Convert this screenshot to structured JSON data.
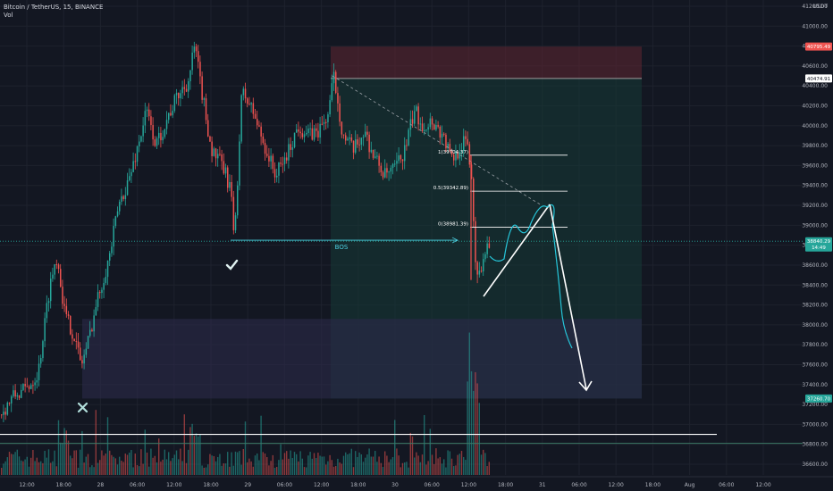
{
  "header": {
    "title": "Bitcoin / TetherUS, 15, BINANCE",
    "volume_label": "Vol",
    "currency": "USDT"
  },
  "price_badges": [
    {
      "value": "40795.49",
      "color": "#ef5350"
    },
    {
      "value": "40474.91",
      "color": "#ffffff"
    },
    {
      "value": "38840.29",
      "sub": "14:49",
      "color": "#26a69a"
    },
    {
      "value": "37260.70",
      "color": "#26a69a"
    }
  ],
  "drawings": {
    "bos_label": "BOS",
    "fib_levels": [
      "1(39704.37)",
      "0.5(39342.89)",
      "0(38981.39)"
    ]
  },
  "colors": {
    "background": "#131722",
    "up": "#26a69a",
    "down": "#ef5350",
    "supply_zone": "#5a2430",
    "demand_zone": "#2b2a4a",
    "target_zone": "#163a36",
    "projection": "#ffffff",
    "projection_wave": "#26c6da"
  },
  "chart_data": {
    "type": "candlestick",
    "title": "Bitcoin / TetherUS, 15, BINANCE",
    "ylabel": "USDT",
    "ylim": [
      36520,
      41300
    ],
    "y_ticks": [
      36600,
      36800,
      37000,
      37200,
      37400,
      37600,
      37800,
      38000,
      38200,
      38400,
      38600,
      38800,
      39000,
      39200,
      39400,
      39600,
      39800,
      40000,
      40200,
      40400,
      40600,
      40800,
      41000,
      41200
    ],
    "x_ticks": [
      "12:00",
      "18:00",
      "28",
      "06:00",
      "12:00",
      "18:00",
      "29",
      "06:00",
      "12:00",
      "18:00",
      "30",
      "06:00",
      "12:00",
      "18:00",
      "31",
      "06:00",
      "12:00",
      "18:00",
      "Aug",
      "06:00",
      "12:00"
    ],
    "price_path": [
      [
        0,
        37100
      ],
      [
        14,
        37280
      ],
      [
        28,
        37350
      ],
      [
        42,
        37520
      ],
      [
        55,
        38400
      ],
      [
        63,
        38700
      ],
      [
        72,
        38100
      ],
      [
        82,
        37900
      ],
      [
        90,
        37600
      ],
      [
        97,
        37800
      ],
      [
        108,
        38250
      ],
      [
        122,
        38700
      ],
      [
        132,
        39200
      ],
      [
        145,
        39500
      ],
      [
        155,
        39850
      ],
      [
        163,
        40150
      ],
      [
        174,
        39800
      ],
      [
        185,
        40050
      ],
      [
        198,
        40300
      ],
      [
        210,
        40450
      ],
      [
        217,
        40800
      ],
      [
        224,
        40400
      ],
      [
        236,
        39750
      ],
      [
        248,
        39600
      ],
      [
        258,
        39350
      ],
      [
        261,
        38800
      ],
      [
        264,
        39300
      ],
      [
        270,
        40350
      ],
      [
        282,
        40150
      ],
      [
        295,
        39800
      ],
      [
        308,
        39500
      ],
      [
        320,
        39700
      ],
      [
        333,
        40000
      ],
      [
        345,
        39900
      ],
      [
        356,
        39950
      ],
      [
        366,
        40100
      ],
      [
        373,
        40500
      ],
      [
        383,
        39900
      ],
      [
        395,
        39750
      ],
      [
        407,
        39950
      ],
      [
        417,
        39700
      ],
      [
        430,
        39500
      ],
      [
        440,
        39550
      ],
      [
        452,
        39750
      ],
      [
        463,
        40150
      ],
      [
        473,
        40000
      ],
      [
        483,
        40050
      ],
      [
        495,
        39900
      ],
      [
        505,
        39650
      ],
      [
        515,
        39800
      ],
      [
        522,
        39850
      ],
      [
        527,
        39450
      ],
      [
        531,
        38700
      ],
      [
        535,
        38450
      ],
      [
        540,
        38700
      ],
      [
        546,
        38850
      ]
    ],
    "annotations": {
      "bos_level": 38850,
      "fib_1": 39704.37,
      "fib_05": 39342.89,
      "fib_0": 38981.39,
      "horizontal_lines": [
        36900,
        36810
      ],
      "supply_zone": [
        40475,
        40795
      ],
      "demand_zone": [
        37260,
        38060
      ],
      "target_zone": [
        37260,
        40475
      ],
      "projection_path": [
        [
          38750,
          38350
        ],
        [
          38845,
          38640
        ],
        [
          38852,
          38950
        ],
        [
          38865,
          38640
        ],
        [
          38877,
          38800
        ],
        [
          38891,
          39100
        ],
        [
          38903,
          38980
        ],
        [
          38918,
          39300
        ],
        [
          38927,
          38700
        ],
        [
          38946,
          37270
        ]
      ]
    }
  }
}
